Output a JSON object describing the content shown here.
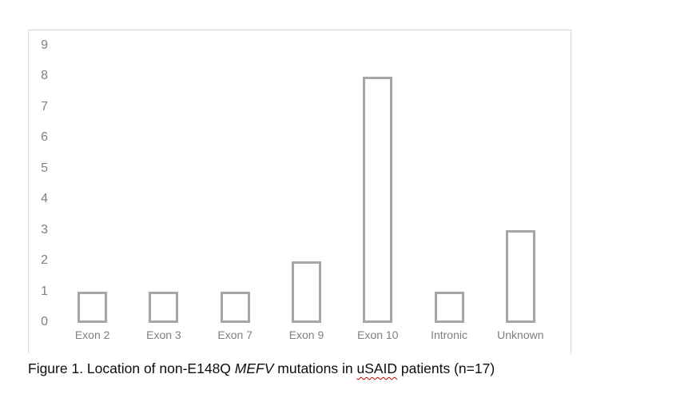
{
  "chart_data": {
    "type": "bar",
    "categories": [
      "Exon 2",
      "Exon 3",
      "Exon 7",
      "Exon 9",
      "Exon 10",
      "Intronic",
      "Unknown"
    ],
    "values": [
      1,
      1,
      1,
      2,
      8,
      1,
      3
    ],
    "title": "",
    "xlabel": "",
    "ylabel": "",
    "ylim": [
      0,
      9
    ],
    "yticks": [
      0,
      1,
      2,
      3,
      4,
      5,
      6,
      7,
      8,
      9
    ],
    "grid": false,
    "legend": "none",
    "bar_fill_color": "#ffffff",
    "bar_border_color": "#a6a6a6",
    "frame_border_color": "#d9d9d9",
    "axis_text_color": "#7f7f7f"
  },
  "caption": {
    "prefix": "Figure 1. Location of non-E148Q ",
    "gene": "MEFV",
    "middle": " mutations in ",
    "misspelled_word": "uSAID",
    "suffix": " patients (n=17)",
    "spellcheck_underline_color": "#c00000"
  }
}
